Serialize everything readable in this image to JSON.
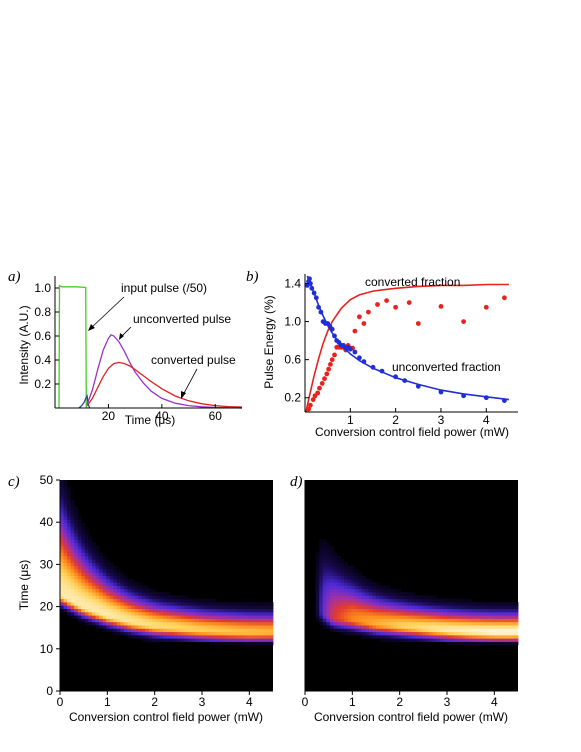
{
  "panel_labels": [
    "a)",
    "b)",
    "c)",
    "d)"
  ],
  "chart_data": [
    {
      "panel": "a)",
      "type": "line",
      "xlabel": "Time (μs)",
      "ylabel": "Intensity (A.U.)",
      "xlim": [
        0,
        70
      ],
      "ylim": [
        0,
        1.1
      ],
      "xticks": [
        20,
        40,
        60
      ],
      "yticks": [
        0.2,
        0.4,
        0.6,
        0.8,
        1.0
      ],
      "ytick_labels": [
        "0.2",
        "0.4",
        "0.6",
        "0.8",
        "1.0"
      ],
      "annotations": [
        "input pulse (/50)",
        "unconverted pulse",
        "converted pulse"
      ],
      "series": [
        {
          "color": "#44cc22",
          "x": [
            1.5,
            1.7,
            2.5,
            5,
            8,
            11,
            11.5,
            11.7
          ],
          "y": [
            0,
            1.02,
            1.01,
            1.01,
            1.01,
            1.005,
            1.005,
            0
          ]
        },
        {
          "color": "#2244aa",
          "x": [
            9,
            10,
            11,
            11.5,
            12,
            12.3,
            12.6,
            13
          ],
          "y": [
            0,
            0.02,
            0.05,
            0.08,
            0.1,
            0.05,
            0.02,
            0
          ]
        },
        {
          "color": "#9933cc",
          "x": [
            12,
            14,
            16,
            18,
            20,
            21,
            22,
            24,
            26,
            28,
            30,
            33,
            36,
            40,
            45,
            50,
            55,
            60,
            70
          ],
          "y": [
            0.03,
            0.15,
            0.32,
            0.48,
            0.58,
            0.61,
            0.6,
            0.55,
            0.47,
            0.38,
            0.3,
            0.21,
            0.14,
            0.08,
            0.04,
            0.02,
            0.01,
            0.005,
            0
          ]
        },
        {
          "color": "#dd2222",
          "x": [
            12,
            14,
            16,
            18,
            20,
            22,
            24,
            26,
            28,
            30,
            33,
            36,
            40,
            45,
            50,
            55,
            60,
            65,
            70
          ],
          "y": [
            0.02,
            0.08,
            0.17,
            0.26,
            0.33,
            0.37,
            0.38,
            0.37,
            0.35,
            0.32,
            0.27,
            0.22,
            0.16,
            0.1,
            0.06,
            0.035,
            0.02,
            0.012,
            0.008
          ]
        }
      ]
    },
    {
      "panel": "b)",
      "type": "scatter",
      "xlabel": "Conversion control field power (mW)",
      "ylabel": "Pulse Energy (%)",
      "xlim": [
        0,
        4.7
      ],
      "ylim": [
        0.05,
        1.5
      ],
      "xticks": [
        1,
        2,
        3,
        4
      ],
      "yticks": [
        0.2,
        0.6,
        1.0,
        1.4
      ],
      "ytick_labels": [
        "0.2",
        "0.6",
        "1.0",
        "1.4"
      ],
      "annotations": [
        "converted fraction",
        "unconverted fraction"
      ],
      "series": [
        {
          "name": "converted fraction",
          "color": "#e8231f",
          "points": [
            [
              0.08,
              0.08
            ],
            [
              0.12,
              0.12
            ],
            [
              0.18,
              0.18
            ],
            [
              0.22,
              0.22
            ],
            [
              0.28,
              0.25
            ],
            [
              0.32,
              0.3
            ],
            [
              0.38,
              0.35
            ],
            [
              0.43,
              0.4
            ],
            [
              0.48,
              0.45
            ],
            [
              0.52,
              0.5
            ],
            [
              0.56,
              0.55
            ],
            [
              0.6,
              0.6
            ],
            [
              0.65,
              0.65
            ],
            [
              0.7,
              0.73
            ],
            [
              0.75,
              0.73
            ],
            [
              0.8,
              0.73
            ],
            [
              0.85,
              0.73
            ],
            [
              0.9,
              0.7
            ],
            [
              0.95,
              0.75
            ],
            [
              1.0,
              0.72
            ],
            [
              1.05,
              0.72
            ],
            [
              1.1,
              0.9
            ],
            [
              1.2,
              1.05
            ],
            [
              1.3,
              0.98
            ],
            [
              1.4,
              1.1
            ],
            [
              1.6,
              1.18
            ],
            [
              1.8,
              1.22
            ],
            [
              2.0,
              1.15
            ],
            [
              2.3,
              1.2
            ],
            [
              2.5,
              0.98
            ],
            [
              3.0,
              1.16
            ],
            [
              3.5,
              1.0
            ],
            [
              4.0,
              1.15
            ],
            [
              4.4,
              1.25
            ]
          ],
          "fit_x": [
            0.02,
            0.1,
            0.2,
            0.3,
            0.4,
            0.5,
            0.6,
            0.8,
            1.0,
            1.2,
            1.5,
            2.0,
            2.5,
            3.0,
            3.5,
            4.0,
            4.5
          ],
          "fit_y": [
            0.05,
            0.22,
            0.43,
            0.61,
            0.77,
            0.9,
            1.0,
            1.14,
            1.23,
            1.28,
            1.32,
            1.35,
            1.37,
            1.38,
            1.38,
            1.39,
            1.39
          ]
        },
        {
          "name": "unconverted fraction",
          "color": "#1f2ed6",
          "points": [
            [
              0.05,
              1.38
            ],
            [
              0.08,
              1.42
            ],
            [
              0.1,
              1.45
            ],
            [
              0.12,
              1.4
            ],
            [
              0.15,
              1.35
            ],
            [
              0.2,
              1.3
            ],
            [
              0.25,
              1.25
            ],
            [
              0.3,
              1.15
            ],
            [
              0.35,
              1.1
            ],
            [
              0.4,
              1.0
            ],
            [
              0.45,
              0.98
            ],
            [
              0.5,
              0.98
            ],
            [
              0.55,
              0.95
            ],
            [
              0.6,
              0.92
            ],
            [
              0.65,
              0.85
            ],
            [
              0.7,
              0.8
            ],
            [
              0.75,
              0.78
            ],
            [
              0.8,
              0.75
            ],
            [
              0.85,
              0.75
            ],
            [
              0.9,
              0.72
            ],
            [
              0.95,
              0.73
            ],
            [
              1.0,
              0.71
            ],
            [
              1.1,
              0.68
            ],
            [
              1.2,
              0.62
            ],
            [
              1.3,
              0.58
            ],
            [
              1.5,
              0.52
            ],
            [
              1.7,
              0.48
            ],
            [
              2.0,
              0.42
            ],
            [
              2.2,
              0.38
            ],
            [
              2.5,
              0.32
            ],
            [
              3.0,
              0.26
            ],
            [
              3.5,
              0.22
            ],
            [
              4.0,
              0.2
            ],
            [
              4.4,
              0.17
            ]
          ],
          "fit_x": [
            0.05,
            0.1,
            0.2,
            0.3,
            0.4,
            0.5,
            0.6,
            0.7,
            0.8,
            1.0,
            1.2,
            1.5,
            2.0,
            2.5,
            3.0,
            3.5,
            4.0,
            4.5
          ],
          "fit_y": [
            1.48,
            1.43,
            1.3,
            1.17,
            1.06,
            0.96,
            0.88,
            0.81,
            0.75,
            0.66,
            0.59,
            0.51,
            0.41,
            0.34,
            0.28,
            0.24,
            0.21,
            0.18
          ]
        }
      ]
    },
    {
      "panel": "c)",
      "type": "heatmap",
      "xlabel": "Conversion control field power (mW)",
      "ylabel": "Time (μs)",
      "xlim": [
        0,
        4.5
      ],
      "ylim": [
        0,
        50
      ],
      "xticks": [
        0,
        1,
        2,
        3,
        4
      ],
      "yticks": [
        0,
        10,
        20,
        30,
        40,
        50
      ],
      "colormap": [
        "#000000",
        "#1a0a55",
        "#4b2bd6",
        "#9a2fb0",
        "#e23b2e",
        "#ff8c1a",
        "#ffd35a",
        "#fff6d8"
      ],
      "ridge": [
        [
          0,
          23
        ],
        [
          0.5,
          20
        ],
        [
          1,
          18
        ],
        [
          1.5,
          16.5
        ],
        [
          2,
          15.5
        ],
        [
          2.5,
          15
        ],
        [
          3,
          14.5
        ],
        [
          3.5,
          14.2
        ],
        [
          4,
          14
        ],
        [
          4.5,
          14
        ]
      ],
      "intensity": [
        [
          0,
          0.95
        ],
        [
          1,
          0.95
        ],
        [
          2,
          0.9
        ],
        [
          3,
          0.85
        ],
        [
          4.5,
          0.8
        ]
      ]
    },
    {
      "panel": "d)",
      "type": "heatmap",
      "xlabel": "Conversion control field power (mW)",
      "ylabel": "",
      "xlim": [
        0,
        4.5
      ],
      "ylim": [
        0,
        50
      ],
      "xticks": [
        0,
        1,
        2,
        3,
        4
      ],
      "yticks": [],
      "colormap": [
        "#000000",
        "#1a0a55",
        "#4b2bd6",
        "#9a2fb0",
        "#e23b2e",
        "#ff8c1a",
        "#ffd35a",
        "#fff6d8"
      ],
      "ridge": [
        [
          0.3,
          19
        ],
        [
          0.6,
          17.5
        ],
        [
          1,
          17
        ],
        [
          1.5,
          16
        ],
        [
          2,
          15.5
        ],
        [
          2.5,
          15
        ],
        [
          3,
          14.5
        ],
        [
          3.5,
          14.2
        ],
        [
          4,
          14
        ],
        [
          4.5,
          14
        ]
      ],
      "intensity": [
        [
          0.2,
          0
        ],
        [
          0.4,
          0.35
        ],
        [
          0.6,
          0.55
        ],
        [
          1,
          0.7
        ],
        [
          1.5,
          0.78
        ],
        [
          2,
          0.85
        ],
        [
          3,
          0.95
        ],
        [
          4,
          1
        ],
        [
          4.5,
          1
        ]
      ]
    }
  ]
}
